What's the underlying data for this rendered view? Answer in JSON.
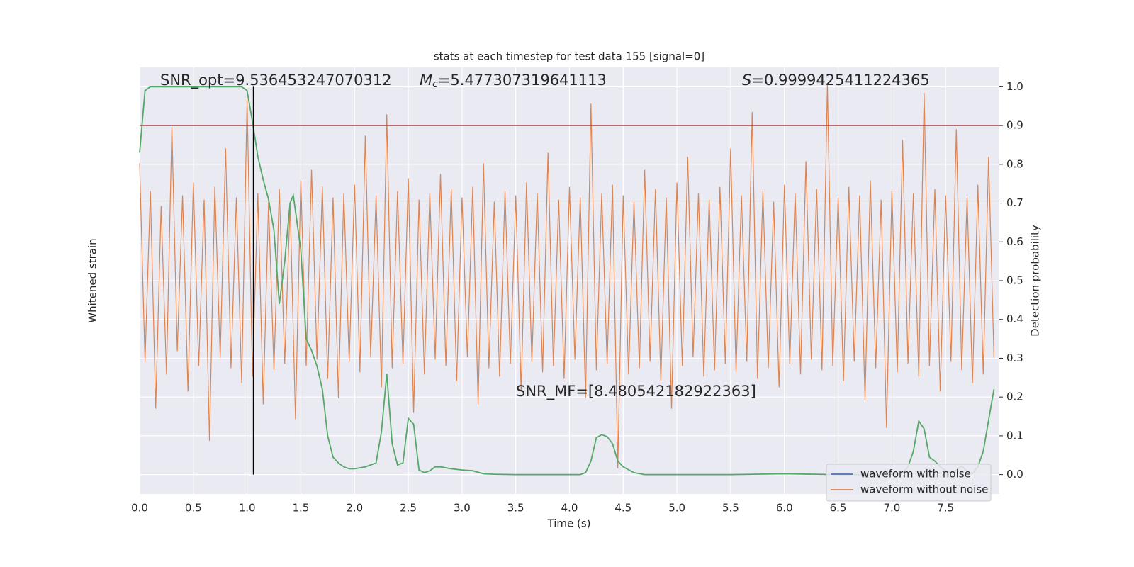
{
  "chart_data": {
    "type": "line",
    "title": "stats at each timestep for test data 155 [signal=0]",
    "xlabel": "Time (s)",
    "ylabel": "Whitened strain",
    "y2label": "Detection probability",
    "xlim": [
      0,
      8
    ],
    "xticks": [
      {
        "value": 0,
        "label": "0.0"
      },
      0.5,
      {
        "value": 1,
        "label": "1.0"
      },
      1.5,
      {
        "value": 2,
        "label": "2.0"
      },
      2.5,
      {
        "value": 3,
        "label": "3.0"
      },
      3.5,
      {
        "value": 4,
        "label": "4.0"
      },
      4.5,
      {
        "value": 5,
        "label": "5.0"
      },
      5.5,
      {
        "value": 6,
        "label": "6.0"
      },
      6.5,
      {
        "value": 7,
        "label": "7.0"
      },
      7.5
    ],
    "ylim": [
      -1,
      1
    ],
    "y2lim": [
      -0.05,
      1.05
    ],
    "y2ticks": [
      {
        "value": 0,
        "label": "0.0"
      },
      0.1,
      0.2,
      0.3,
      0.4,
      0.5,
      0.6,
      0.7,
      0.8,
      0.9,
      {
        "value": 1,
        "label": "1.0"
      }
    ],
    "grid": true,
    "legend": "lower right",
    "series": [
      {
        "name": "waveform with noise",
        "color": "#4c72b0"
      },
      {
        "name": "waveform without noise",
        "color": "#dd8452",
        "x": [
          0,
          0.05,
          0.1,
          0.15,
          0.2,
          0.25,
          0.3,
          0.35,
          0.4,
          0.45,
          0.5,
          0.55,
          0.6,
          0.65,
          0.7,
          0.75,
          0.8,
          0.85,
          0.9,
          0.95,
          1,
          1.05,
          1.1,
          1.15,
          1.2,
          1.25,
          1.3,
          1.35,
          1.4,
          1.45,
          1.5,
          1.55,
          1.6,
          1.65,
          1.7,
          1.75,
          1.8,
          1.85,
          1.9,
          1.95,
          2,
          2.05,
          2.1,
          2.15,
          2.2,
          2.25,
          2.3,
          2.35,
          2.4,
          2.45,
          2.5,
          2.55,
          2.6,
          2.65,
          2.7,
          2.75,
          2.8,
          2.85,
          2.9,
          2.95,
          3,
          3.05,
          3.1,
          3.15,
          3.2,
          3.25,
          3.3,
          3.35,
          3.4,
          3.45,
          3.5,
          3.55,
          3.6,
          3.65,
          3.7,
          3.75,
          3.8,
          3.85,
          3.9,
          3.95,
          4,
          4.05,
          4.1,
          4.15,
          4.2,
          4.25,
          4.3,
          4.35,
          4.4,
          4.45,
          4.5,
          4.55,
          4.6,
          4.65,
          4.7,
          4.75,
          4.8,
          4.85,
          4.9,
          4.95,
          5,
          5.05,
          5.1,
          5.15,
          5.2,
          5.25,
          5.3,
          5.35,
          5.4,
          5.45,
          5.5,
          5.55,
          5.6,
          5.65,
          5.7,
          5.75,
          5.8,
          5.85,
          5.9,
          5.95,
          6,
          6.05,
          6.1,
          6.15,
          6.2,
          6.25,
          6.3,
          6.35,
          6.4,
          6.45,
          6.5,
          6.55,
          6.6,
          6.65,
          6.7,
          6.75,
          6.8,
          6.85,
          6.9,
          6.95,
          7,
          7.05,
          7.1,
          7.15,
          7.2,
          7.25,
          7.3,
          7.35,
          7.4,
          7.45,
          7.5,
          7.55,
          7.6,
          7.65,
          7.7,
          7.75,
          7.8,
          7.85,
          7.9,
          7.95
        ],
        "values": [
          0.55,
          -0.38,
          0.42,
          -0.6,
          0.35,
          -0.44,
          0.72,
          -0.33,
          0.4,
          -0.52,
          0.46,
          -0.4,
          0.38,
          -0.75,
          0.44,
          -0.36,
          0.62,
          -0.41,
          0.39,
          -0.48,
          0.85,
          -0.45,
          0.41,
          -0.58,
          0.37,
          -0.42,
          0.43,
          -0.39,
          0.36,
          -0.65,
          0.47,
          -0.4,
          0.52,
          -0.37,
          0.44,
          -0.46,
          0.39,
          -0.55,
          0.41,
          -0.38,
          0.45,
          -0.43,
          0.68,
          -0.36,
          0.4,
          -0.5,
          0.78,
          -0.41,
          0.42,
          -0.39,
          0.48,
          -0.62,
          0.38,
          -0.44,
          0.41,
          -0.37,
          0.5,
          -0.4,
          0.43,
          -0.47,
          0.39,
          -0.36,
          0.44,
          -0.58,
          0.55,
          -0.41,
          0.37,
          -0.45,
          0.42,
          -0.39,
          0.4,
          -0.52,
          0.46,
          -0.38,
          0.41,
          -0.43,
          0.6,
          -0.4,
          0.38,
          -0.46,
          0.44,
          -0.37,
          0.39,
          -0.55,
          0.83,
          -0.42,
          0.41,
          -0.39,
          0.45,
          -0.88,
          0.4,
          -0.44,
          0.37,
          -0.41,
          0.52,
          -0.38,
          0.43,
          -0.47,
          0.39,
          -0.6,
          0.46,
          -0.4,
          0.58,
          -0.36,
          0.41,
          -0.45,
          0.38,
          -0.42,
          0.44,
          -0.39,
          0.62,
          -0.43,
          0.4,
          -0.38,
          0.79,
          -0.46,
          0.42,
          -0.41,
          0.37,
          -0.5,
          0.45,
          -0.39,
          0.41,
          -0.44,
          0.56,
          -0.37,
          0.43,
          -0.42,
          0.92,
          -0.4,
          0.39,
          -0.47,
          0.44,
          -0.38,
          0.4,
          -0.56,
          0.47,
          -0.41,
          0.38,
          -0.69,
          0.42,
          -0.43,
          0.66,
          -0.39,
          0.41,
          -0.45,
          0.88,
          -0.4,
          0.43,
          -0.52,
          0.4,
          -0.38,
          0.71,
          -0.42,
          0.39,
          -0.48,
          0.45,
          -0.44,
          0.58,
          -0.36
        ]
      },
      {
        "color": "#55a868",
        "axis": "y2",
        "x": [
          0,
          0.05,
          0.1,
          0.2,
          0.3,
          0.4,
          0.5,
          0.6,
          0.7,
          0.8,
          0.9,
          0.95,
          1.0,
          1.05,
          1.1,
          1.15,
          1.2,
          1.25,
          1.3,
          1.35,
          1.4,
          1.43,
          1.5,
          1.55,
          1.6,
          1.65,
          1.7,
          1.75,
          1.8,
          1.85,
          1.9,
          1.95,
          2.0,
          2.1,
          2.2,
          2.25,
          2.3,
          2.35,
          2.4,
          2.45,
          2.5,
          2.55,
          2.6,
          2.65,
          2.7,
          2.75,
          2.8,
          2.9,
          3.0,
          3.1,
          3.2,
          3.3,
          3.5,
          3.8,
          4.0,
          4.1,
          4.15,
          4.2,
          4.25,
          4.3,
          4.35,
          4.4,
          4.45,
          4.5,
          4.6,
          4.7,
          4.8,
          5.0,
          5.5,
          6.0,
          6.5,
          7.0,
          7.1,
          7.15,
          7.2,
          7.25,
          7.3,
          7.35,
          7.4,
          7.45,
          7.5,
          7.55,
          7.6,
          7.65,
          7.7,
          7.75,
          7.8,
          7.85,
          7.9,
          7.95
        ],
        "values": [
          0.83,
          0.99,
          1.0,
          1.0,
          1.0,
          1.0,
          1.0,
          1.0,
          1.0,
          1.0,
          1.0,
          1.0,
          0.99,
          0.91,
          0.82,
          0.76,
          0.71,
          0.63,
          0.44,
          0.55,
          0.7,
          0.72,
          0.58,
          0.35,
          0.32,
          0.28,
          0.22,
          0.1,
          0.045,
          0.03,
          0.02,
          0.015,
          0.015,
          0.02,
          0.03,
          0.11,
          0.26,
          0.08,
          0.025,
          0.03,
          0.145,
          0.13,
          0.012,
          0.005,
          0.01,
          0.02,
          0.02,
          0.015,
          0.012,
          0.01,
          0.002,
          0.001,
          0.0,
          0.0,
          0.0,
          0.0,
          0.005,
          0.035,
          0.095,
          0.103,
          0.098,
          0.08,
          0.035,
          0.02,
          0.005,
          0.0,
          0.0,
          0.0,
          0.0,
          0.002,
          0.0,
          0.0,
          0.005,
          0.02,
          0.06,
          0.138,
          0.118,
          0.045,
          0.035,
          0.02,
          0.01,
          0.005,
          0.012,
          0.022,
          0.008,
          0.003,
          0.02,
          0.06,
          0.14,
          0.22
        ]
      }
    ],
    "threshold": {
      "value": 0.9,
      "color": "#c44e52"
    },
    "marker_time": {
      "value": 1.06,
      "color": "#000000"
    },
    "annotations": [
      {
        "text": "SNR_opt=9.536453247070312"
      },
      {
        "symbol": "M",
        "subscript": "c",
        "text": "=5.477307319641113"
      },
      {
        "symbol": "S",
        "text": "=0.9999425411224365"
      },
      {
        "text": "SNR_MF=[8.480542182922363]"
      }
    ]
  }
}
